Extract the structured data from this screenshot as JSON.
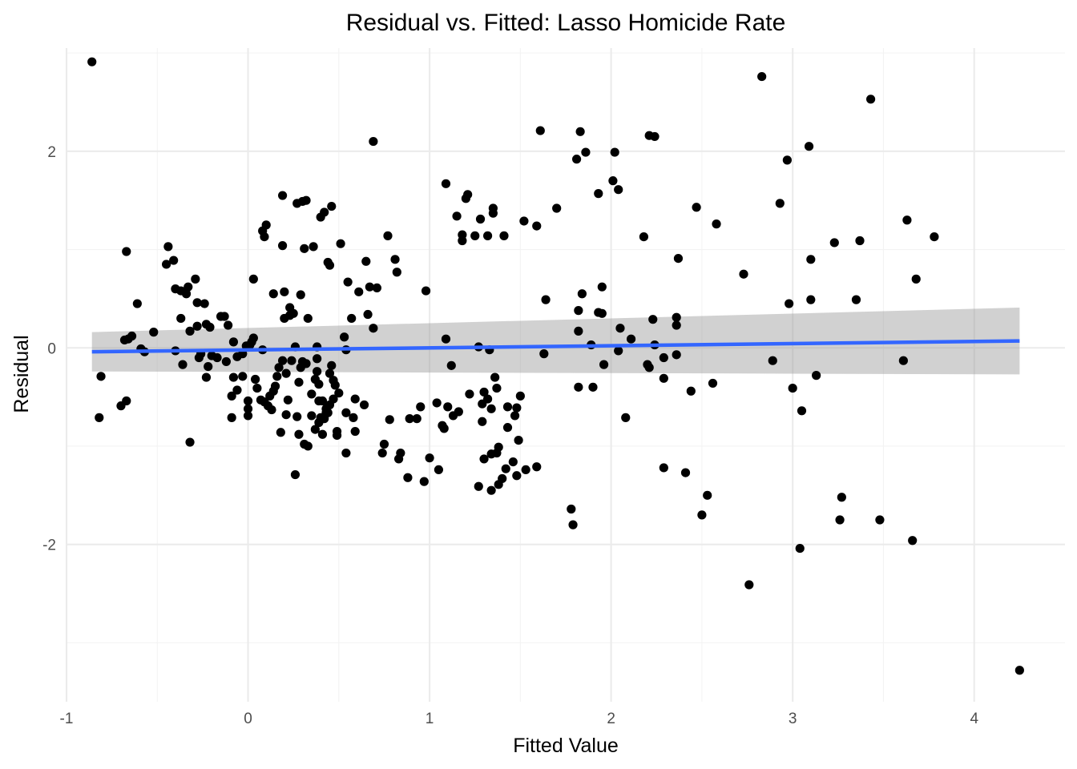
{
  "chart_data": {
    "type": "scatter",
    "title": "Residual vs. Fitted: Lasso Homicide Rate",
    "xlabel": "Fitted Value",
    "ylabel": "Residual",
    "xlim": [
      -1.0,
      4.5
    ],
    "ylim": [
      -3.6,
      3.05
    ],
    "x_ticks": [
      -1,
      0,
      1,
      2,
      3,
      4
    ],
    "x_tick_labels": [
      "-1",
      "0",
      "1",
      "2",
      "3",
      "4"
    ],
    "y_ticks": [
      -2,
      0,
      2
    ],
    "y_tick_labels": [
      "-2",
      "0",
      "2"
    ],
    "grid": true,
    "legend": "none",
    "colors": {
      "points": "#000000",
      "line": "#3366FF",
      "band": "#999999"
    },
    "trend": {
      "method": "linear fit with confidence band",
      "x": [
        -0.86,
        4.25
      ],
      "y": [
        -0.04,
        0.07
      ],
      "band_upper": [
        0.16,
        0.41
      ],
      "band_lower": [
        -0.24,
        -0.27
      ]
    },
    "points": [
      [
        -0.86,
        2.91
      ],
      [
        -0.81,
        -0.29
      ],
      [
        -0.82,
        -0.71
      ],
      [
        -0.7,
        -0.59
      ],
      [
        -0.67,
        -0.54
      ],
      [
        -0.67,
        0.98
      ],
      [
        -0.68,
        0.08
      ],
      [
        -0.66,
        0.09
      ],
      [
        -0.64,
        0.12
      ],
      [
        -0.61,
        0.45
      ],
      [
        -0.59,
        -0.01
      ],
      [
        -0.57,
        -0.04
      ],
      [
        -0.52,
        0.16
      ],
      [
        -0.45,
        0.85
      ],
      [
        -0.44,
        1.03
      ],
      [
        -0.41,
        0.89
      ],
      [
        -0.4,
        0.6
      ],
      [
        -0.4,
        -0.03
      ],
      [
        -0.37,
        0.3
      ],
      [
        -0.37,
        0.58
      ],
      [
        -0.36,
        -0.17
      ],
      [
        -0.34,
        0.55
      ],
      [
        -0.33,
        0.62
      ],
      [
        -0.32,
        0.17
      ],
      [
        -0.32,
        -0.96
      ],
      [
        -0.29,
        0.7
      ],
      [
        -0.28,
        0.46
      ],
      [
        -0.28,
        0.22
      ],
      [
        -0.27,
        -0.1
      ],
      [
        -0.26,
        -0.06
      ],
      [
        -0.24,
        0.45
      ],
      [
        -0.23,
        0.24
      ],
      [
        -0.23,
        -0.3
      ],
      [
        -0.22,
        -0.19
      ],
      [
        -0.21,
        0.21
      ],
      [
        -0.2,
        -0.08
      ],
      [
        -0.17,
        -0.1
      ],
      [
        -0.15,
        0.32
      ],
      [
        -0.13,
        0.32
      ],
      [
        -0.12,
        -0.14
      ],
      [
        -0.11,
        0.23
      ],
      [
        -0.09,
        -0.71
      ],
      [
        -0.09,
        -0.49
      ],
      [
        -0.08,
        -0.3
      ],
      [
        -0.08,
        0.06
      ],
      [
        -0.06,
        -0.43
      ],
      [
        -0.06,
        -0.09
      ],
      [
        -0.03,
        -0.06
      ],
      [
        -0.03,
        -0.29
      ],
      [
        -0.01,
        0.02
      ],
      [
        0.0,
        -0.69
      ],
      [
        0.0,
        -0.62
      ],
      [
        0.0,
        -0.54
      ],
      [
        0.01,
        0.03
      ],
      [
        0.02,
        0.06
      ],
      [
        0.03,
        0.1
      ],
      [
        0.03,
        0.7
      ],
      [
        0.04,
        -0.32
      ],
      [
        0.05,
        -0.41
      ],
      [
        0.07,
        -0.53
      ],
      [
        0.08,
        -0.02
      ],
      [
        0.08,
        1.19
      ],
      [
        0.09,
        -0.55
      ],
      [
        0.09,
        1.13
      ],
      [
        0.1,
        1.25
      ],
      [
        0.11,
        -0.59
      ],
      [
        0.12,
        -0.49
      ],
      [
        0.13,
        -0.63
      ],
      [
        0.14,
        -0.44
      ],
      [
        0.14,
        0.55
      ],
      [
        0.15,
        -0.39
      ],
      [
        0.16,
        -0.29
      ],
      [
        0.17,
        -0.2
      ],
      [
        0.18,
        -0.86
      ],
      [
        0.19,
        -0.13
      ],
      [
        0.19,
        1.04
      ],
      [
        0.19,
        1.55
      ],
      [
        0.2,
        0.3
      ],
      [
        0.2,
        0.57
      ],
      [
        0.21,
        -0.26
      ],
      [
        0.21,
        -0.68
      ],
      [
        0.22,
        -0.53
      ],
      [
        0.23,
        0.41
      ],
      [
        0.23,
        0.33
      ],
      [
        0.24,
        -0.13
      ],
      [
        0.25,
        0.35
      ],
      [
        0.26,
        0.01
      ],
      [
        0.26,
        -1.29
      ],
      [
        0.27,
        -0.7
      ],
      [
        0.27,
        1.47
      ],
      [
        0.28,
        -0.35
      ],
      [
        0.28,
        -0.88
      ],
      [
        0.29,
        -0.2
      ],
      [
        0.29,
        0.54
      ],
      [
        0.3,
        -0.14
      ],
      [
        0.3,
        1.49
      ],
      [
        0.31,
        -0.98
      ],
      [
        0.31,
        1.01
      ],
      [
        0.32,
        1.5
      ],
      [
        0.32,
        -0.16
      ],
      [
        0.33,
        -1.0
      ],
      [
        0.33,
        0.3
      ],
      [
        0.35,
        -0.47
      ],
      [
        0.35,
        -0.69
      ],
      [
        0.36,
        1.03
      ],
      [
        0.37,
        -0.83
      ],
      [
        0.37,
        -0.32
      ],
      [
        0.38,
        -0.11
      ],
      [
        0.38,
        -0.24
      ],
      [
        0.38,
        0.01
      ],
      [
        0.39,
        -0.54
      ],
      [
        0.39,
        -0.76
      ],
      [
        0.39,
        -0.37
      ],
      [
        0.4,
        -0.71
      ],
      [
        0.4,
        1.33
      ],
      [
        0.41,
        -0.88
      ],
      [
        0.41,
        -0.54
      ],
      [
        0.42,
        -0.72
      ],
      [
        0.42,
        1.38
      ],
      [
        0.43,
        -0.62
      ],
      [
        0.43,
        -0.66
      ],
      [
        0.44,
        -0.66
      ],
      [
        0.44,
        0.87
      ],
      [
        0.45,
        -0.58
      ],
      [
        0.45,
        -0.26
      ],
      [
        0.45,
        0.84
      ],
      [
        0.46,
        -0.18
      ],
      [
        0.46,
        1.44
      ],
      [
        0.47,
        -0.52
      ],
      [
        0.47,
        -0.33
      ],
      [
        0.48,
        -0.38
      ],
      [
        0.49,
        -0.89
      ],
      [
        0.49,
        -0.85
      ],
      [
        0.5,
        -0.46
      ],
      [
        0.51,
        1.06
      ],
      [
        0.53,
        0.11
      ],
      [
        0.54,
        -0.02
      ],
      [
        0.54,
        -0.66
      ],
      [
        0.54,
        -1.07
      ],
      [
        0.55,
        0.67
      ],
      [
        0.57,
        0.3
      ],
      [
        0.58,
        -0.71
      ],
      [
        0.59,
        -0.52
      ],
      [
        0.59,
        -0.85
      ],
      [
        0.61,
        0.57
      ],
      [
        0.64,
        -0.58
      ],
      [
        0.65,
        0.88
      ],
      [
        0.66,
        0.34
      ],
      [
        0.67,
        0.62
      ],
      [
        0.69,
        2.1
      ],
      [
        0.69,
        0.2
      ],
      [
        0.71,
        0.61
      ],
      [
        0.74,
        -1.07
      ],
      [
        0.75,
        -0.98
      ],
      [
        0.77,
        1.14
      ],
      [
        0.78,
        -0.73
      ],
      [
        0.81,
        0.9
      ],
      [
        0.82,
        0.77
      ],
      [
        0.83,
        -1.13
      ],
      [
        0.84,
        -1.07
      ],
      [
        0.88,
        -1.32
      ],
      [
        0.89,
        -0.72
      ],
      [
        0.93,
        -0.72
      ],
      [
        0.95,
        -0.6
      ],
      [
        0.97,
        -1.36
      ],
      [
        0.98,
        0.58
      ],
      [
        1.0,
        -1.12
      ],
      [
        1.04,
        -0.56
      ],
      [
        1.05,
        -1.24
      ],
      [
        1.07,
        -0.79
      ],
      [
        1.08,
        -0.82
      ],
      [
        1.09,
        0.09
      ],
      [
        1.09,
        1.67
      ],
      [
        1.1,
        -0.6
      ],
      [
        1.12,
        -0.18
      ],
      [
        1.13,
        -0.69
      ],
      [
        1.15,
        1.34
      ],
      [
        1.16,
        -0.65
      ],
      [
        1.18,
        1.09
      ],
      [
        1.18,
        1.15
      ],
      [
        1.2,
        1.52
      ],
      [
        1.21,
        1.56
      ],
      [
        1.22,
        -0.47
      ],
      [
        1.25,
        1.14
      ],
      [
        1.27,
        0.01
      ],
      [
        1.27,
        -1.41
      ],
      [
        1.28,
        1.31
      ],
      [
        1.29,
        -0.57
      ],
      [
        1.29,
        -0.75
      ],
      [
        1.3,
        -1.13
      ],
      [
        1.3,
        -0.45
      ],
      [
        1.32,
        -0.52
      ],
      [
        1.32,
        1.14
      ],
      [
        1.33,
        -0.02
      ],
      [
        1.34,
        -1.08
      ],
      [
        1.34,
        -1.45
      ],
      [
        1.34,
        -0.62
      ],
      [
        1.35,
        1.37
      ],
      [
        1.35,
        1.42
      ],
      [
        1.36,
        -0.3
      ],
      [
        1.37,
        -0.41
      ],
      [
        1.37,
        -1.07
      ],
      [
        1.38,
        -1.01
      ],
      [
        1.38,
        -1.39
      ],
      [
        1.4,
        -1.33
      ],
      [
        1.41,
        1.14
      ],
      [
        1.42,
        -1.23
      ],
      [
        1.43,
        -0.6
      ],
      [
        1.43,
        -0.81
      ],
      [
        1.46,
        -1.16
      ],
      [
        1.47,
        -0.69
      ],
      [
        1.48,
        -0.61
      ],
      [
        1.48,
        -1.3
      ],
      [
        1.49,
        -0.94
      ],
      [
        1.5,
        -0.49
      ],
      [
        1.52,
        1.29
      ],
      [
        1.53,
        -1.24
      ],
      [
        1.59,
        -1.21
      ],
      [
        1.59,
        1.24
      ],
      [
        1.61,
        2.21
      ],
      [
        1.63,
        -0.06
      ],
      [
        1.64,
        0.49
      ],
      [
        1.7,
        1.42
      ],
      [
        1.78,
        -1.64
      ],
      [
        1.79,
        -1.8
      ],
      [
        1.81,
        1.92
      ],
      [
        1.82,
        0.17
      ],
      [
        1.82,
        -0.4
      ],
      [
        1.82,
        0.38
      ],
      [
        1.83,
        2.2
      ],
      [
        1.84,
        0.55
      ],
      [
        1.86,
        1.99
      ],
      [
        1.89,
        0.03
      ],
      [
        1.9,
        -0.4
      ],
      [
        1.93,
        1.57
      ],
      [
        1.93,
        0.36
      ],
      [
        1.95,
        0.35
      ],
      [
        1.95,
        0.62
      ],
      [
        1.96,
        -0.17
      ],
      [
        2.01,
        1.7
      ],
      [
        2.02,
        1.99
      ],
      [
        2.04,
        -0.03
      ],
      [
        2.04,
        1.61
      ],
      [
        2.05,
        0.2
      ],
      [
        2.08,
        -0.71
      ],
      [
        2.11,
        0.09
      ],
      [
        2.18,
        1.13
      ],
      [
        2.2,
        -0.17
      ],
      [
        2.21,
        2.16
      ],
      [
        2.21,
        -0.2
      ],
      [
        2.23,
        0.29
      ],
      [
        2.24,
        2.15
      ],
      [
        2.24,
        0.03
      ],
      [
        2.29,
        -0.1
      ],
      [
        2.29,
        -0.31
      ],
      [
        2.29,
        -1.22
      ],
      [
        2.36,
        0.31
      ],
      [
        2.36,
        0.23
      ],
      [
        2.36,
        -0.07
      ],
      [
        2.37,
        0.91
      ],
      [
        2.41,
        -1.27
      ],
      [
        2.44,
        -0.44
      ],
      [
        2.47,
        1.43
      ],
      [
        2.5,
        -1.7
      ],
      [
        2.53,
        -1.5
      ],
      [
        2.56,
        -0.36
      ],
      [
        2.58,
        1.26
      ],
      [
        2.73,
        0.75
      ],
      [
        2.76,
        -2.41
      ],
      [
        2.83,
        2.76
      ],
      [
        2.89,
        -0.13
      ],
      [
        2.93,
        1.47
      ],
      [
        2.97,
        1.91
      ],
      [
        2.98,
        0.45
      ],
      [
        3.0,
        -0.41
      ],
      [
        3.04,
        -2.04
      ],
      [
        3.05,
        -0.64
      ],
      [
        3.09,
        2.05
      ],
      [
        3.1,
        0.9
      ],
      [
        3.1,
        0.49
      ],
      [
        3.13,
        -0.28
      ],
      [
        3.23,
        1.07
      ],
      [
        3.26,
        -1.75
      ],
      [
        3.27,
        -1.52
      ],
      [
        3.35,
        0.49
      ],
      [
        3.37,
        1.09
      ],
      [
        3.43,
        2.53
      ],
      [
        3.48,
        -1.75
      ],
      [
        3.61,
        -0.13
      ],
      [
        3.63,
        1.3
      ],
      [
        3.66,
        -1.96
      ],
      [
        3.68,
        0.7
      ],
      [
        3.78,
        1.13
      ],
      [
        4.25,
        -3.28
      ]
    ]
  }
}
